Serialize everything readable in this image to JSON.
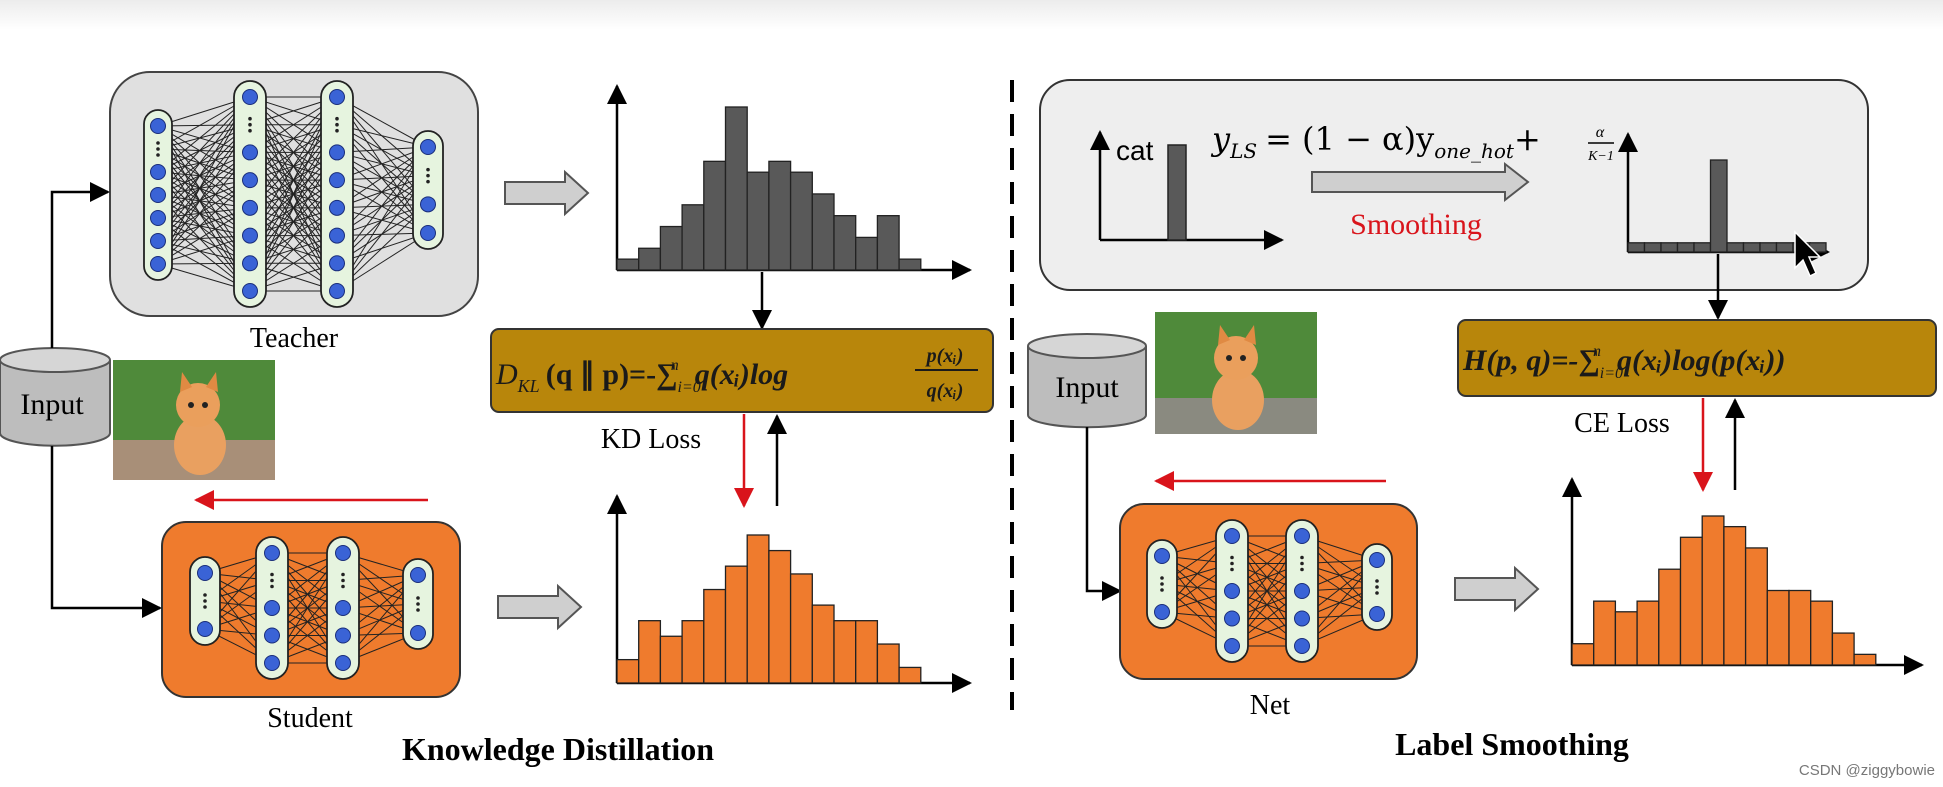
{
  "knowledge_distillation": {
    "teacher_label": "Teacher",
    "student_label": "Student",
    "input_label": "Input",
    "kd_loss_label": "KD Loss",
    "formula": {
      "lhs": "D",
      "lhs_sub": "KL",
      "args": "(q ∥ p)=-∑",
      "sum_sub": "i=0",
      "sum_sup": "n",
      "term": "q(xᵢ)log",
      "frac_num": "p(xᵢ)",
      "frac_den": "q(xᵢ)"
    },
    "section_title": "Knowledge Distillation",
    "teacher_hist": [
      1,
      2,
      4,
      6,
      10,
      15,
      9,
      10,
      9,
      7,
      5,
      3,
      5,
      1
    ],
    "student_hist": [
      3,
      8,
      6,
      8,
      12,
      15,
      19,
      17,
      14,
      10,
      8,
      8,
      5,
      2
    ]
  },
  "label_smoothing": {
    "net_label": "Net",
    "input_label": "Input",
    "cat_label": "cat",
    "ce_loss_label": "CE Loss",
    "smoothing_label": "Smoothing",
    "formula_ls": {
      "y": "y",
      "y_sub": "LS",
      "mid": "= (1 − α)y",
      "mid_sub": "one_hot",
      "plus": "+",
      "frac_num": "α",
      "frac_den": "K−1"
    },
    "formula_ce": {
      "lhs": "H(p, q)=-∑",
      "sum_sub": "i=0",
      "sum_sup": "n",
      "term": "q(xᵢ)log(p(xᵢ))"
    },
    "section_title": "Label Smoothing",
    "smooth_hist": [
      1,
      1,
      1,
      1,
      1,
      10,
      1,
      1,
      1,
      1,
      1,
      1
    ],
    "net_hist": [
      2,
      6,
      5,
      6,
      9,
      12,
      14,
      13,
      11,
      7,
      7,
      6,
      3,
      1
    ]
  },
  "watermark": "CSDN @ziggybowie",
  "colors": {
    "orange": "#ef7b2d",
    "gray_box": "#e0e0e0",
    "node_blue": "#3a63d6",
    "layer_fill": "#e6f4df",
    "loss_box": "#b8860b",
    "red": "#d9141b",
    "bar_dark": "#595959"
  }
}
